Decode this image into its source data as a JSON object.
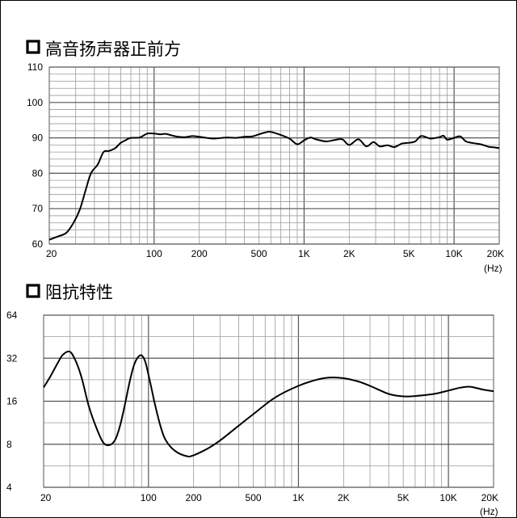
{
  "chart_data": [
    {
      "type": "line",
      "title": "高音扬声器正前方",
      "x_scale": "log",
      "xlim": [
        20,
        20000
      ],
      "ylim": [
        60,
        110
      ],
      "x_ticks": [
        {
          "value": 20,
          "label": "20"
        },
        {
          "value": 100,
          "label": "100"
        },
        {
          "value": 200,
          "label": "200"
        },
        {
          "value": 500,
          "label": "500"
        },
        {
          "value": 1000,
          "label": "1K"
        },
        {
          "value": 2000,
          "label": "2K"
        },
        {
          "value": 5000,
          "label": "5K"
        },
        {
          "value": 10000,
          "label": "10K"
        },
        {
          "value": 20000,
          "label": "20K"
        }
      ],
      "x_unit": "(Hz)",
      "y_ticks": [
        {
          "value": 60,
          "label": "60"
        },
        {
          "value": 70,
          "label": "70"
        },
        {
          "value": 80,
          "label": "80"
        },
        {
          "value": 90,
          "label": "90"
        },
        {
          "value": 100,
          "label": "100"
        },
        {
          "value": 110,
          "label": "110"
        }
      ],
      "grid": true,
      "series": [
        {
          "x": [
            20,
            23,
            26,
            29,
            32,
            35,
            38,
            42,
            46,
            50,
            55,
            60,
            65,
            70,
            80,
            90,
            100,
            110,
            120,
            140,
            160,
            180,
            200,
            250,
            300,
            350,
            400,
            450,
            500,
            550,
            600,
            700,
            800,
            900,
            1000,
            1100,
            1200,
            1400,
            1600,
            1800,
            2000,
            2300,
            2600,
            2900,
            3200,
            3600,
            4000,
            4500,
            5000,
            5500,
            6000,
            6500,
            7000,
            8000,
            8500,
            9000,
            10000,
            11000,
            12000,
            13500,
            15000,
            17000,
            18500,
            20000
          ],
          "y": [
            61.2,
            62.2,
            63.2,
            66.0,
            69.8,
            75.3,
            80.1,
            82.4,
            86.0,
            86.3,
            87.1,
            88.6,
            89.4,
            90.0,
            90.1,
            91.2,
            91.2,
            91.0,
            91.1,
            90.4,
            90.2,
            90.5,
            90.3,
            89.8,
            90.1,
            90.0,
            90.3,
            90.4,
            91.0,
            91.5,
            91.7,
            90.8,
            89.8,
            88.2,
            89.3,
            90.1,
            89.6,
            89.0,
            89.4,
            89.6,
            88.0,
            89.6,
            87.6,
            88.8,
            87.6,
            87.9,
            87.4,
            88.4,
            88.6,
            89.0,
            90.5,
            90.2,
            89.8,
            90.2,
            90.6,
            89.5,
            90.0,
            90.4,
            89.0,
            88.5,
            88.2,
            87.5,
            87.3,
            87.1
          ]
        }
      ]
    },
    {
      "type": "line",
      "title": "阻抗特性",
      "x_scale": "log",
      "y_scale": "log",
      "xlim": [
        20,
        20000
      ],
      "ylim": [
        4,
        64
      ],
      "x_ticks": [
        {
          "value": 20,
          "label": "20"
        },
        {
          "value": 100,
          "label": "100"
        },
        {
          "value": 200,
          "label": "200"
        },
        {
          "value": 500,
          "label": "500"
        },
        {
          "value": 1000,
          "label": "1K"
        },
        {
          "value": 2000,
          "label": "2K"
        },
        {
          "value": 5000,
          "label": "5K"
        },
        {
          "value": 10000,
          "label": "10K"
        },
        {
          "value": 20000,
          "label": "20K"
        }
      ],
      "x_unit": "(Hz)",
      "y_ticks": [
        {
          "value": 4,
          "label": "4"
        },
        {
          "value": 8,
          "label": "8"
        },
        {
          "value": 16,
          "label": "16"
        },
        {
          "value": 32,
          "label": "32"
        },
        {
          "value": 64,
          "label": "64"
        }
      ],
      "grid": true,
      "series": [
        {
          "x": [
            20,
            22,
            25,
            27,
            30,
            33,
            36,
            40,
            45,
            50,
            55,
            60,
            65,
            70,
            75,
            80,
            85,
            90,
            95,
            100,
            105,
            110,
            120,
            130,
            150,
            180,
            200,
            250,
            300,
            400,
            500,
            700,
            1000,
            1300,
            1600,
            2000,
            2500,
            3000,
            4000,
            5000,
            6000,
            8000,
            10000,
            12000,
            14000,
            17000,
            20000
          ],
          "y": [
            20.0,
            23.5,
            30.0,
            34.0,
            35.5,
            30.0,
            23.0,
            14.8,
            10.4,
            8.2,
            7.9,
            8.6,
            11.0,
            15.5,
            22.0,
            28.5,
            32.5,
            33.5,
            30.5,
            24.5,
            19.5,
            15.5,
            10.8,
            8.6,
            7.2,
            6.6,
            6.7,
            7.5,
            8.5,
            10.8,
            13.0,
            17.0,
            20.5,
            22.5,
            23.4,
            23.2,
            22.0,
            20.5,
            18.0,
            17.3,
            17.4,
            18.0,
            19.0,
            19.9,
            20.2,
            19.3,
            18.8
          ]
        }
      ]
    }
  ]
}
